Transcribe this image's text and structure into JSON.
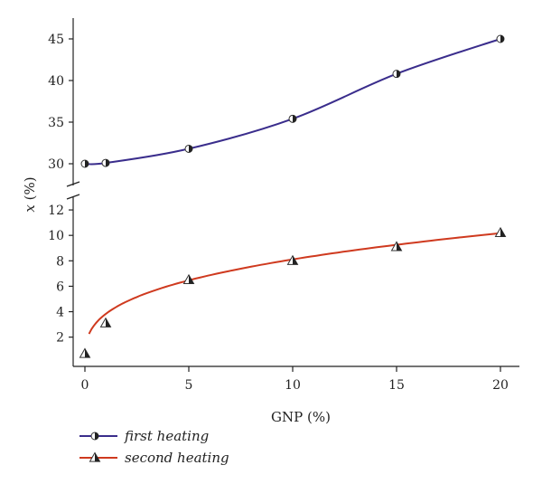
{
  "chart_data": {
    "type": "line",
    "xlabel": "GNP (%)",
    "ylabel": "x (%)",
    "xlim": [
      -0.5,
      21
    ],
    "x_ticks": [
      0,
      5,
      10,
      15,
      20
    ],
    "y_break": true,
    "y_upper_range": [
      27.5,
      47.5
    ],
    "y_upper_ticks": [
      30,
      35,
      40,
      45
    ],
    "y_lower_range": [
      -0.3,
      13
    ],
    "y_lower_ticks": [
      2,
      4,
      6,
      8,
      10,
      12
    ],
    "grid": false,
    "legend_position": "bottom-left",
    "series": [
      {
        "name": "first heating",
        "marker": "half-filled-circle",
        "color": "#3a2d8c",
        "x": [
          0,
          1,
          5,
          10,
          15,
          20
        ],
        "y": [
          30.0,
          30.1,
          31.8,
          35.4,
          40.8,
          45.0
        ]
      },
      {
        "name": "second heating",
        "marker": "half-filled-triangle",
        "color": "#cf3a1f",
        "x": [
          0,
          1,
          5,
          10,
          15,
          20
        ],
        "y": [
          0.7,
          3.1,
          6.5,
          8.0,
          9.1,
          10.2
        ]
      }
    ]
  }
}
